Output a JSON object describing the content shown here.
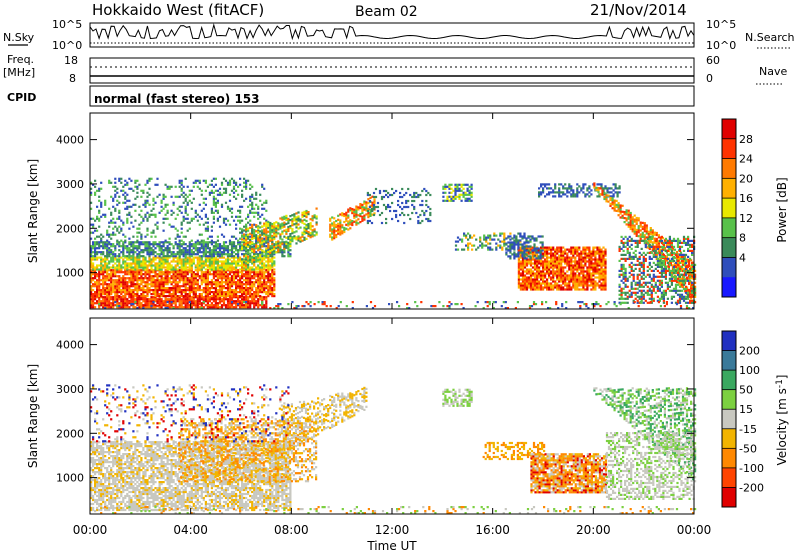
{
  "chart_data": {
    "type": "heatmap",
    "header": {
      "title": "Hokkaido West (fitACF)",
      "beam": "Beam 02",
      "date": "21/Nov/2014"
    },
    "left_labels": {
      "nsky": "N.Sky",
      "freq": "Freq.",
      "freq_unit": "[MHz]",
      "cpid": "CPID"
    },
    "right_labels": {
      "nsearch": "N.Search",
      "nave": "Nave"
    },
    "noise_panel": {
      "left_ticks": [
        "10^5",
        "10^0"
      ],
      "right_ticks": [
        "10^5",
        "10^0"
      ]
    },
    "freq_panel": {
      "left_ticks": [
        "18",
        "8"
      ],
      "right_ticks": [
        "60",
        "0"
      ]
    },
    "cpid_text": "normal (fast stereo) 153",
    "xlabel": "Time UT",
    "xticks": [
      "00:00",
      "04:00",
      "08:00",
      "12:00",
      "16:00",
      "20:00",
      "00:00"
    ],
    "xlim_hours": [
      0,
      24
    ],
    "panels": [
      {
        "id": "power",
        "ylabel": "Slant Range [km]",
        "yticks": [
          1000,
          2000,
          3000,
          4000
        ],
        "ylim": [
          180,
          4600
        ],
        "colorbar": {
          "label": "Power [dB]",
          "ticks": [
            "28",
            "24",
            "20",
            "16",
            "12",
            "8",
            "4"
          ],
          "colors": [
            "#e00000",
            "#ff3300",
            "#ff7a00",
            "#ffb000",
            "#e8e800",
            "#58c14a",
            "#3a8a5a",
            "#2f4ebc",
            "#1818ff"
          ]
        },
        "regions": [
          {
            "t0": 0.0,
            "t1": 7.3,
            "r0": 300,
            "r1": 1600,
            "value": "16-20"
          },
          {
            "t0": 0.0,
            "t1": 6.5,
            "r0": 700,
            "r1": 1100,
            "value": "20-28"
          },
          {
            "t0": 7.5,
            "t1": 10.2,
            "r0": 1200,
            "r1": 2300,
            "value": "12-20"
          },
          {
            "t0": 9.8,
            "t1": 11.3,
            "r0": 1900,
            "r1": 2700,
            "value": "12-24"
          },
          {
            "t0": 17.5,
            "t1": 20.2,
            "r0": 700,
            "r1": 1500,
            "value": "20-28"
          },
          {
            "t0": 20.8,
            "t1": 24.0,
            "r0": 300,
            "r1": 2700,
            "value": "12-24"
          }
        ]
      },
      {
        "id": "velocity",
        "ylabel": "Slant Range [km]",
        "yticks": [
          1000,
          2000,
          3000,
          4000
        ],
        "ylim": [
          180,
          4600
        ],
        "colorbar": {
          "label": "Velocity [m s^-1]",
          "ticks": [
            "200",
            "100",
            "50",
            "15",
            "-15",
            "-50",
            "-100",
            "-200"
          ],
          "colors": [
            "#2030c0",
            "#3a7a9a",
            "#3aa860",
            "#7cd040",
            "#c8c8c0",
            "#f2b400",
            "#ff8800",
            "#ff4400",
            "#e00000"
          ]
        },
        "regions": [
          {
            "t0": 0.0,
            "t1": 8.0,
            "r0": 300,
            "r1": 1800,
            "value": "-15..15"
          },
          {
            "t0": 3.5,
            "t1": 8.5,
            "r0": 900,
            "r1": 2200,
            "value": "-50..-15"
          },
          {
            "t0": 15.6,
            "t1": 20.5,
            "r0": 700,
            "r1": 1800,
            "value": "-100..-50"
          },
          {
            "t0": 20.0,
            "t1": 24.0,
            "r0": 800,
            "r1": 3000,
            "value": "15..50"
          }
        ]
      }
    ]
  }
}
